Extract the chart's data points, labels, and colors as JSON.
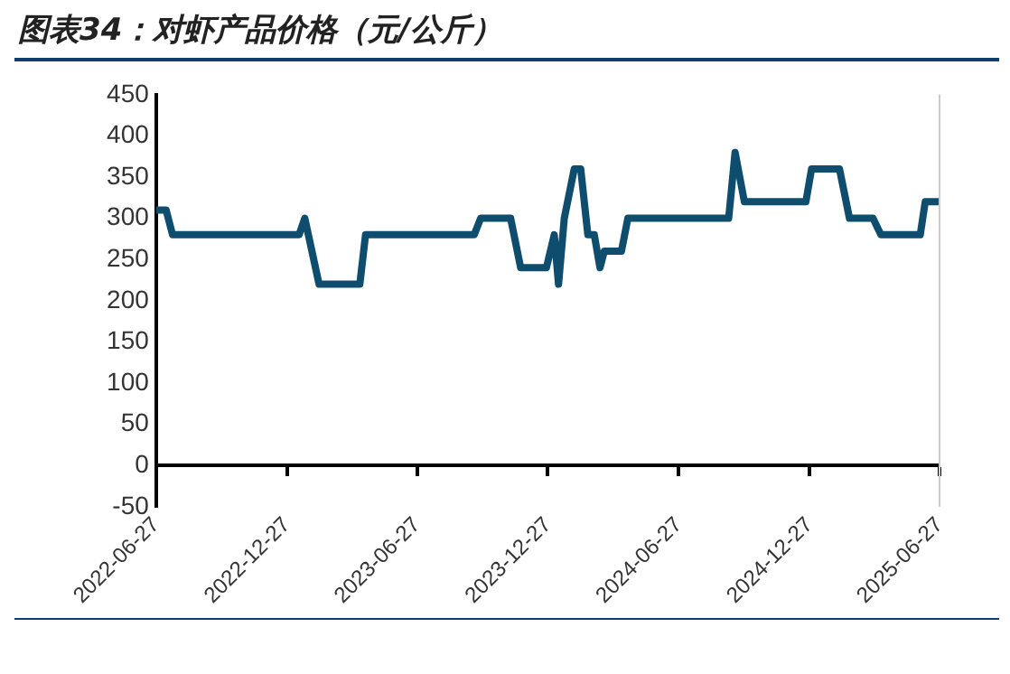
{
  "chart_data": {
    "type": "line",
    "title": "图表34：对虾产品价格（元/公斤）",
    "x": [
      "2022-06-27",
      "2022-07-11",
      "2022-07-20",
      "2023-01-13",
      "2023-01-21",
      "2023-02-10",
      "2023-04-08",
      "2023-04-16",
      "2023-09-15",
      "2023-09-24",
      "2023-11-05",
      "2023-11-19",
      "2023-12-25",
      "2024-01-05",
      "2024-01-11",
      "2024-01-19",
      "2024-02-02",
      "2024-02-11",
      "2024-02-21",
      "2024-03-01",
      "2024-03-09",
      "2024-03-15",
      "2024-04-08",
      "2024-04-17",
      "2024-09-05",
      "2024-09-14",
      "2024-09-27",
      "2024-12-22",
      "2024-12-30",
      "2025-02-07",
      "2025-02-21",
      "2025-03-26",
      "2025-04-06",
      "2025-05-31",
      "2025-06-07",
      "2025-06-27"
    ],
    "series": [
      {
        "color": "#0e4d6e",
        "values": [
          310,
          310,
          280,
          280,
          300,
          220,
          220,
          280,
          280,
          300,
          300,
          240,
          240,
          280,
          220,
          300,
          360,
          360,
          280,
          280,
          240,
          260,
          260,
          300,
          300,
          380,
          320,
          320,
          360,
          360,
          300,
          300,
          280,
          280,
          320,
          320
        ]
      }
    ],
    "xlim": [
      "2022-06-27",
      "2025-06-27"
    ],
    "xticks": [
      "2022-06-27",
      "2022-12-27",
      "2023-06-27",
      "2023-12-27",
      "2024-06-27",
      "2024-12-27",
      "2025-06-27"
    ],
    "ylim": [
      -50,
      450
    ],
    "yticks": [
      -50,
      0,
      50,
      100,
      150,
      200,
      250,
      300,
      350,
      400,
      450
    ],
    "grid": false,
    "legend": false,
    "marker": "none",
    "line_style": "solid"
  }
}
